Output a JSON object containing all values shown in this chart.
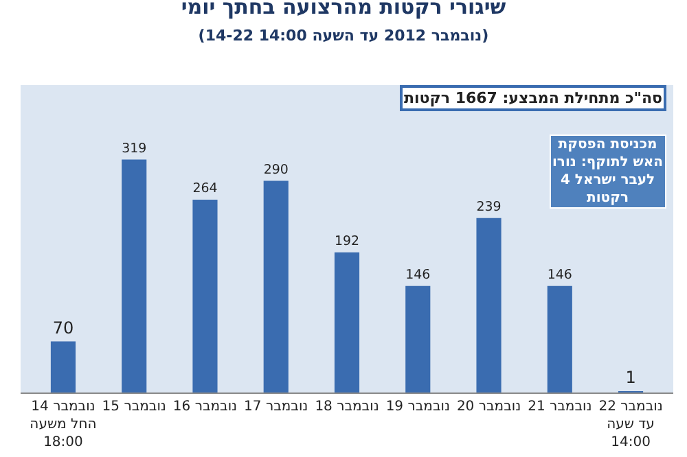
{
  "chart_data": {
    "type": "bar",
    "title": "שיגורי רקטות מהרצועה בחתך יומי",
    "subtitle": "(14-22 נובמבר 2012 עד השעה 14:00)",
    "categories": [
      "14 נובמבר\nהחל משעה\n18:00",
      "15 נובמבר",
      "16 נובמבר",
      "17 נובמבר",
      "18 נובמבר",
      "19 נובמבר",
      "20 נובמבר",
      "21 נובמבר",
      "22 נובמבר\nעד שעה\n14:00"
    ],
    "values": [
      70,
      319,
      264,
      290,
      192,
      146,
      239,
      146,
      1
    ],
    "color": "#3a6cb0",
    "data_labels": true,
    "grid": false,
    "legend": false,
    "annotations": [
      "סה\"כ מתחילת המבצע: 1667 רקטות",
      "מכניסת הפסקת\nהאש לתוקף: נורו\nלעבר ישראל 4\nרקטות"
    ]
  }
}
